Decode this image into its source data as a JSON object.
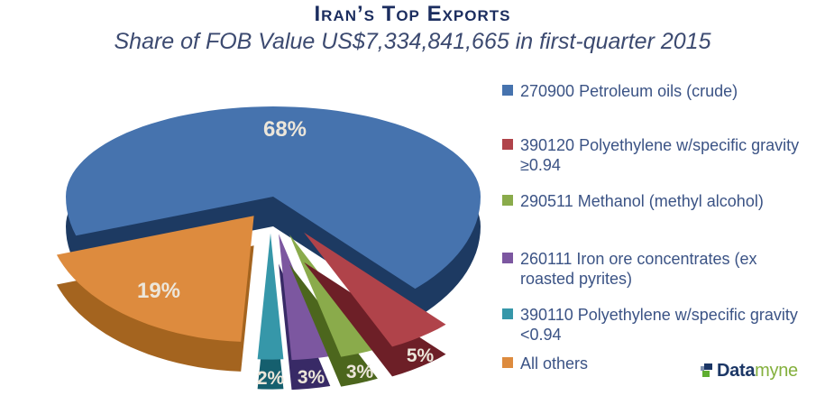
{
  "header": {
    "title": "Iran’s Top Exports",
    "subtitle": "Share of FOB Value US$7,334,841,665 in first-quarter 2015"
  },
  "chart_data": {
    "type": "pie",
    "style": "3d-exploded-pie",
    "title": "Iran’s Top Exports",
    "subtitle": "Share of FOB Value US$7,334,841,665 in first-quarter 2015",
    "total_fob_value": "US$7,334,841,665",
    "period": "first-quarter 2015",
    "legend_position": "right",
    "slices": [
      {
        "label": "270900 Petroleum oils (crude)",
        "pct": 68,
        "pct_label": "68%",
        "color": "#4673ae",
        "side_color": "#1d3a62"
      },
      {
        "label": "390120 Polyethylene w/specific gravity ≥0.94",
        "pct": 5,
        "pct_label": "5%",
        "color": "#b0434a",
        "side_color": "#6d1f27"
      },
      {
        "label": "290511 Methanol (methyl alcohol)",
        "pct": 3,
        "pct_label": "3%",
        "color": "#8aab4b",
        "side_color": "#4c661d"
      },
      {
        "label": "260111 Iron ore concentrates (ex roasted pyrites)",
        "pct": 3,
        "pct_label": "3%",
        "color": "#7c57a0",
        "side_color": "#382a66"
      },
      {
        "label": "390110 Polyethylene w/specific gravity <0.94",
        "pct": 2,
        "pct_label": "2%",
        "color": "#3697a9",
        "side_color": "#155f6e"
      },
      {
        "label": "All others",
        "pct": 19,
        "pct_label": "19%",
        "color": "#dd8b3e",
        "side_color": "#a4641f"
      }
    ]
  },
  "branding": {
    "logo_bold": "Data",
    "logo_light": "myne"
  }
}
